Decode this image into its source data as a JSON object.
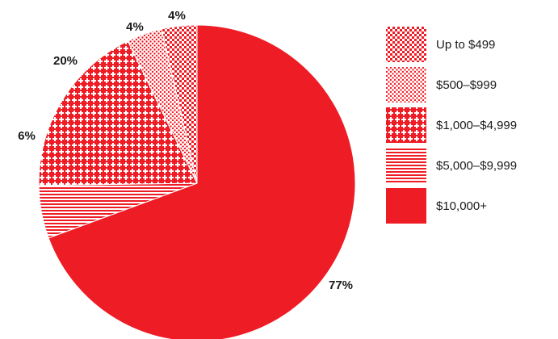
{
  "chart_data": {
    "type": "pie",
    "title": "",
    "legend_placement": "right",
    "start_angle_deg": 0,
    "direction": "clockwise",
    "slices": [
      {
        "label": "$10,000+",
        "value": 77,
        "display": "77%",
        "pattern": "solid"
      },
      {
        "label": "$5,000–$9,999",
        "value": 6,
        "display": "6%",
        "pattern": "lines"
      },
      {
        "label": "$1,000–$4,999",
        "value": 20,
        "display": "20%",
        "pattern": "plus"
      },
      {
        "label": "$500–$999",
        "value": 4,
        "display": "4%",
        "pattern": "dots"
      },
      {
        "label": "Up to $499",
        "value": 4,
        "display": "4%",
        "pattern": "crosshatch"
      }
    ],
    "legend_order": [
      "Up to $499",
      "$500–$999",
      "$1,000–$4,999",
      "$5,000–$9,999",
      "$10,000+"
    ],
    "colors": {
      "accent": "#ee1c25",
      "background": "#ffffff"
    }
  }
}
